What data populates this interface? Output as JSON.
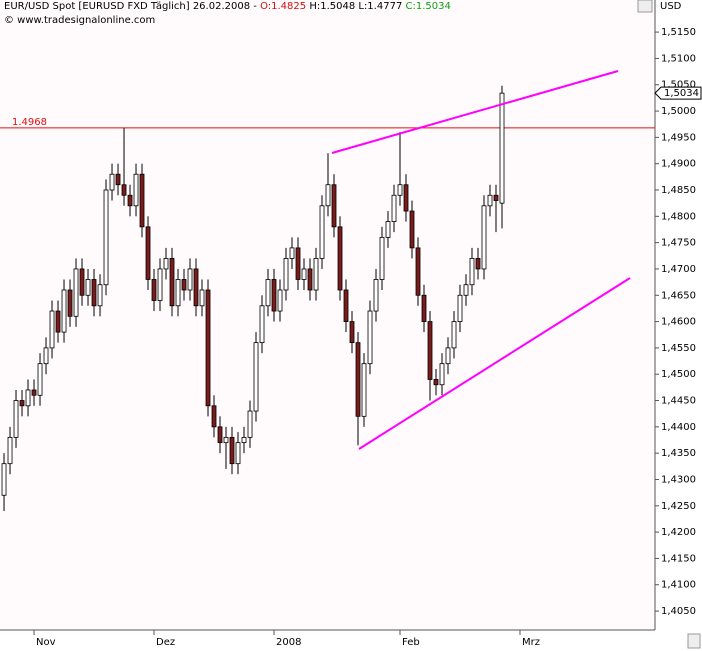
{
  "chart_data": {
    "type": "candlestick",
    "title": "EUR/USD Spot [EURUSD FXD  Täglich] 26.02.2008 -",
    "header_open": "O:1.4825",
    "header_hl": "H:1.5048 L:1.4777",
    "header_close": "C:1.5034",
    "subtitle": "© www.tradesignalonline.com",
    "y_axis_label": "USD",
    "up_color": "#ffffff",
    "down_color": "#7b1c1c",
    "grid": false,
    "hline": {
      "value": 1.4968,
      "label": "1.4968",
      "color": "#e01010"
    },
    "last_price": {
      "value": 1.5034,
      "label": "1,5034"
    },
    "x": [
      0,
      1,
      2,
      3,
      4,
      5,
      6,
      7,
      8,
      9,
      10,
      11,
      12,
      13,
      14,
      15,
      16,
      17,
      18,
      19,
      20,
      21,
      22,
      23,
      24,
      25,
      26,
      27,
      28,
      29,
      30,
      31,
      32,
      33,
      34,
      35,
      36,
      37,
      38,
      39,
      40,
      41,
      42,
      43,
      44,
      45,
      46,
      47,
      48,
      49,
      50,
      51,
      52,
      53,
      54,
      55,
      56,
      57,
      58,
      59,
      60,
      61,
      62,
      63,
      64,
      65,
      66,
      67,
      68,
      69,
      70,
      71,
      72,
      73,
      74,
      75,
      76,
      77,
      78,
      79,
      80,
      81,
      82,
      83
    ],
    "open": [
      1.427,
      1.433,
      1.438,
      1.445,
      1.444,
      1.447,
      1.446,
      1.452,
      1.455,
      1.462,
      1.458,
      1.466,
      1.461,
      1.47,
      1.465,
      1.468,
      1.463,
      1.467,
      1.485,
      1.488,
      1.486,
      1.484,
      1.482,
      1.488,
      1.478,
      1.468,
      1.464,
      1.47,
      1.472,
      1.463,
      1.468,
      1.466,
      1.47,
      1.463,
      1.466,
      1.444,
      1.44,
      1.437,
      1.438,
      1.433,
      1.437,
      1.438,
      1.443,
      1.456,
      1.463,
      1.468,
      1.462,
      1.466,
      1.472,
      1.474,
      1.468,
      1.47,
      1.466,
      1.472,
      1.482,
      1.486,
      1.478,
      1.466,
      1.46,
      1.456,
      1.442,
      1.452,
      1.462,
      1.468,
      1.476,
      1.479,
      1.484,
      1.486,
      1.481,
      1.474,
      1.465,
      1.46,
      1.449,
      1.448,
      1.452,
      1.455,
      1.46,
      1.465,
      1.467,
      1.472,
      1.47,
      1.482,
      1.484,
      1.4825
    ],
    "high": [
      1.435,
      1.44,
      1.447,
      1.447,
      1.449,
      1.449,
      1.454,
      1.457,
      1.464,
      1.464,
      1.468,
      1.468,
      1.472,
      1.472,
      1.47,
      1.47,
      1.469,
      1.487,
      1.49,
      1.49,
      1.4968,
      1.486,
      1.49,
      1.49,
      1.48,
      1.47,
      1.472,
      1.474,
      1.474,
      1.47,
      1.47,
      1.472,
      1.472,
      1.468,
      1.468,
      1.446,
      1.442,
      1.44,
      1.44,
      1.439,
      1.44,
      1.445,
      1.458,
      1.465,
      1.47,
      1.47,
      1.468,
      1.474,
      1.476,
      1.476,
      1.472,
      1.472,
      1.474,
      1.484,
      1.492,
      1.488,
      1.48,
      1.468,
      1.462,
      1.458,
      1.454,
      1.464,
      1.47,
      1.478,
      1.481,
      1.486,
      1.496,
      1.488,
      1.483,
      1.476,
      1.467,
      1.462,
      1.451,
      1.454,
      1.457,
      1.462,
      1.467,
      1.469,
      1.474,
      1.474,
      1.484,
      1.486,
      1.486,
      1.5048
    ],
    "low": [
      1.424,
      1.431,
      1.436,
      1.442,
      1.442,
      1.444,
      1.444,
      1.45,
      1.453,
      1.456,
      1.456,
      1.459,
      1.459,
      1.463,
      1.463,
      1.461,
      1.461,
      1.465,
      1.483,
      1.484,
      1.482,
      1.48,
      1.48,
      1.476,
      1.466,
      1.462,
      1.462,
      1.468,
      1.461,
      1.461,
      1.464,
      1.464,
      1.461,
      1.461,
      1.442,
      1.438,
      1.435,
      1.432,
      1.431,
      1.431,
      1.435,
      1.436,
      1.441,
      1.454,
      1.461,
      1.46,
      1.46,
      1.464,
      1.47,
      1.466,
      1.466,
      1.464,
      1.464,
      1.47,
      1.48,
      1.476,
      1.464,
      1.458,
      1.454,
      1.4365,
      1.44,
      1.45,
      1.46,
      1.466,
      1.474,
      1.477,
      1.482,
      1.479,
      1.472,
      1.463,
      1.458,
      1.445,
      1.446,
      1.446,
      1.45,
      1.453,
      1.458,
      1.463,
      1.465,
      1.468,
      1.468,
      1.48,
      1.477,
      1.4777
    ],
    "close": [
      1.433,
      1.438,
      1.445,
      1.444,
      1.447,
      1.446,
      1.452,
      1.455,
      1.462,
      1.458,
      1.466,
      1.461,
      1.47,
      1.465,
      1.468,
      1.463,
      1.467,
      1.485,
      1.488,
      1.486,
      1.484,
      1.482,
      1.488,
      1.478,
      1.468,
      1.464,
      1.47,
      1.472,
      1.463,
      1.468,
      1.466,
      1.47,
      1.463,
      1.466,
      1.444,
      1.44,
      1.437,
      1.438,
      1.433,
      1.437,
      1.438,
      1.443,
      1.456,
      1.463,
      1.468,
      1.462,
      1.466,
      1.472,
      1.474,
      1.468,
      1.47,
      1.466,
      1.472,
      1.482,
      1.486,
      1.478,
      1.466,
      1.46,
      1.456,
      1.442,
      1.452,
      1.462,
      1.468,
      1.476,
      1.479,
      1.484,
      1.486,
      1.481,
      1.474,
      1.465,
      1.46,
      1.449,
      1.448,
      1.452,
      1.455,
      1.46,
      1.465,
      1.467,
      1.472,
      1.47,
      1.482,
      1.484,
      1.483,
      1.5034
    ],
    "xlim": [
      -0.67,
      108.5
    ],
    "xticks": [
      {
        "value": 5,
        "label": "Nov"
      },
      {
        "value": 25,
        "label": "Dez"
      },
      {
        "value": 45,
        "label": "2008"
      },
      {
        "value": 66,
        "label": "Feb"
      },
      {
        "value": 86,
        "label": "Mrz"
      }
    ],
    "ylim": [
      1.4014,
      1.5211
    ],
    "yticks": [
      {
        "value": 1.405,
        "label": "1,4050"
      },
      {
        "value": 1.41,
        "label": "1,4100"
      },
      {
        "value": 1.415,
        "label": "1,4150"
      },
      {
        "value": 1.42,
        "label": "1,4200"
      },
      {
        "value": 1.425,
        "label": "1,4250"
      },
      {
        "value": 1.43,
        "label": "1,4300"
      },
      {
        "value": 1.435,
        "label": "1,4350"
      },
      {
        "value": 1.44,
        "label": "1,4400"
      },
      {
        "value": 1.445,
        "label": "1,4450"
      },
      {
        "value": 1.45,
        "label": "1,4500"
      },
      {
        "value": 1.455,
        "label": "1,4550"
      },
      {
        "value": 1.46,
        "label": "1,4600"
      },
      {
        "value": 1.465,
        "label": "1,4650"
      },
      {
        "value": 1.47,
        "label": "1,4700"
      },
      {
        "value": 1.475,
        "label": "1,4750"
      },
      {
        "value": 1.48,
        "label": "1,4800"
      },
      {
        "value": 1.485,
        "label": "1,4850"
      },
      {
        "value": 1.49,
        "label": "1,4900"
      },
      {
        "value": 1.495,
        "label": "1,4950"
      },
      {
        "value": 1.5,
        "label": "1,5000"
      },
      {
        "value": 1.505,
        "label": "1,5050"
      },
      {
        "value": 1.51,
        "label": "1,5100"
      },
      {
        "value": 1.515,
        "label": "1,5150"
      }
    ]
  }
}
